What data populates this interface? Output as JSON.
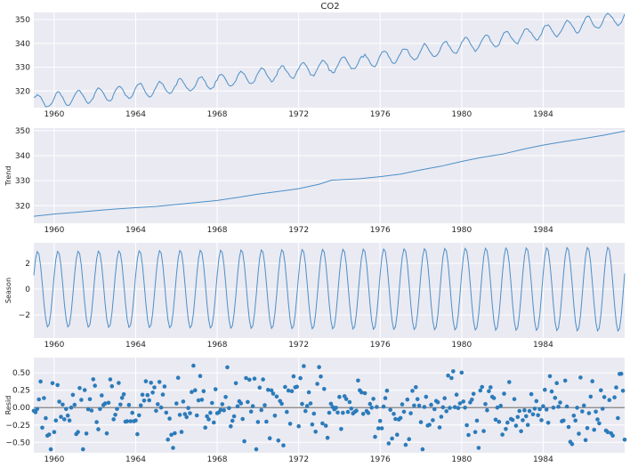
{
  "chart_data": {
    "type": "line",
    "title": "CO2",
    "x_range": [
      1959.0,
      1988.0
    ],
    "x_ticks": [
      1960,
      1964,
      1968,
      1972,
      1976,
      1980,
      1984
    ],
    "x_tick_labels": [
      "1960",
      "1964",
      "1968",
      "1972",
      "1976",
      "1980",
      "1984"
    ],
    "grid": true,
    "panels": [
      {
        "id": "observed",
        "ylabel": "",
        "kind": "line",
        "ylim": [
          313,
          353
        ],
        "yticks": [
          320,
          330,
          340,
          350
        ],
        "yticklabels": [
          "320",
          "330",
          "340",
          "350"
        ],
        "model": {
          "start": 1959.0,
          "end": 1988.0,
          "base": 315.4,
          "slope": 0.84,
          "curvature": 0.0135,
          "seasonal_amplitude": 2.9,
          "noise": 0.3
        }
      },
      {
        "id": "trend",
        "ylabel": "Trend",
        "kind": "line",
        "ylim": [
          313,
          351
        ],
        "yticks": [
          320,
          330,
          340,
          350
        ],
        "yticklabels": [
          "320",
          "330",
          "340",
          "350"
        ],
        "points": [
          [
            1959.0,
            315.8
          ],
          [
            1960.0,
            316.7
          ],
          [
            1961.0,
            317.3
          ],
          [
            1962.0,
            318.0
          ],
          [
            1963.0,
            318.7
          ],
          [
            1964.0,
            319.2
          ],
          [
            1965.0,
            319.7
          ],
          [
            1966.0,
            320.5
          ],
          [
            1967.0,
            321.3
          ],
          [
            1968.0,
            322.1
          ],
          [
            1969.0,
            323.3
          ],
          [
            1970.0,
            324.6
          ],
          [
            1971.0,
            325.7
          ],
          [
            1972.0,
            326.8
          ],
          [
            1973.0,
            328.6
          ],
          [
            1973.6,
            330.2
          ],
          [
            1975.0,
            330.8
          ],
          [
            1976.0,
            331.6
          ],
          [
            1977.0,
            332.6
          ],
          [
            1978.0,
            334.3
          ],
          [
            1979.0,
            335.8
          ],
          [
            1980.0,
            337.7
          ],
          [
            1981.0,
            339.3
          ],
          [
            1982.0,
            340.6
          ],
          [
            1983.0,
            342.5
          ],
          [
            1984.0,
            344.2
          ],
          [
            1985.0,
            345.6
          ],
          [
            1986.0,
            346.8
          ],
          [
            1987.0,
            348.2
          ],
          [
            1988.0,
            349.8
          ]
        ]
      },
      {
        "id": "season",
        "ylabel": "Season",
        "kind": "line",
        "ylim": [
          -3.8,
          3.6
        ],
        "yticks": [
          -2,
          0,
          2
        ],
        "yticklabels": [
          "−2",
          "0",
          "2"
        ],
        "model": {
          "start": 1959.0,
          "end": 1988.0,
          "amplitude": 2.95,
          "amplitude_growth": 0.004
        }
      },
      {
        "id": "resid",
        "ylabel": "Resid",
        "kind": "scatter",
        "ylim": [
          -0.65,
          0.72
        ],
        "yticks": [
          -0.5,
          -0.25,
          0.0,
          0.25,
          0.5
        ],
        "yticklabels": [
          "−0.50",
          "−0.25",
          "0.00",
          "0.25",
          "0.50"
        ],
        "zero_line": 0.0,
        "model": {
          "start": 1959.0,
          "end": 1988.0,
          "std": 0.25,
          "clip": [
            -0.6,
            0.62
          ]
        }
      }
    ]
  },
  "colors": {
    "line": "#4c8fc8",
    "marker": "#2b7bba",
    "zero_line": "#7f7f7f",
    "axes_bg": "#eaeaf2",
    "grid": "#ffffff"
  }
}
